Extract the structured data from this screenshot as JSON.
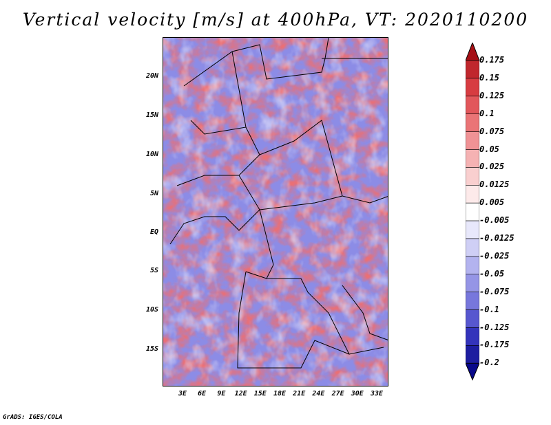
{
  "title": "Vertical velocity [m/s] at 400hPa, VT: 2020110200",
  "credit": "GrADS: IGES/COLA",
  "axes": {
    "lat_labels": [
      "20N",
      "15N",
      "10N",
      "5N",
      "EQ",
      "5S",
      "10S",
      "15S"
    ],
    "lon_labels": [
      "3E",
      "6E",
      "9E",
      "12E",
      "15E",
      "18E",
      "21E",
      "24E",
      "27E",
      "30E",
      "33E"
    ]
  },
  "colorbar": {
    "labels": [
      "0.175",
      "0.15",
      "0.125",
      "0.1",
      "0.075",
      "0.05",
      "0.025",
      "0.0125",
      "0.005",
      "-0.005",
      "-0.0125",
      "-0.025",
      "-0.05",
      "-0.075",
      "-0.1",
      "-0.125",
      "-0.175",
      "-0.2"
    ],
    "colors": [
      "#a50f15",
      "#c0272d",
      "#d73c41",
      "#e2575b",
      "#ea7476",
      "#f09295",
      "#f5b2b3",
      "#f9cfcf",
      "#fdeaea",
      "#ffffff",
      "#e8e8fb",
      "#cfcff5",
      "#b3b3ef",
      "#9595e6",
      "#7777dc",
      "#5757cf",
      "#3333bb",
      "#1d1da0",
      "#08088a"
    ]
  },
  "palette": {
    "red": "#e05560",
    "blue": "#5858d8",
    "white": "#ffffff",
    "border": "#000000"
  }
}
